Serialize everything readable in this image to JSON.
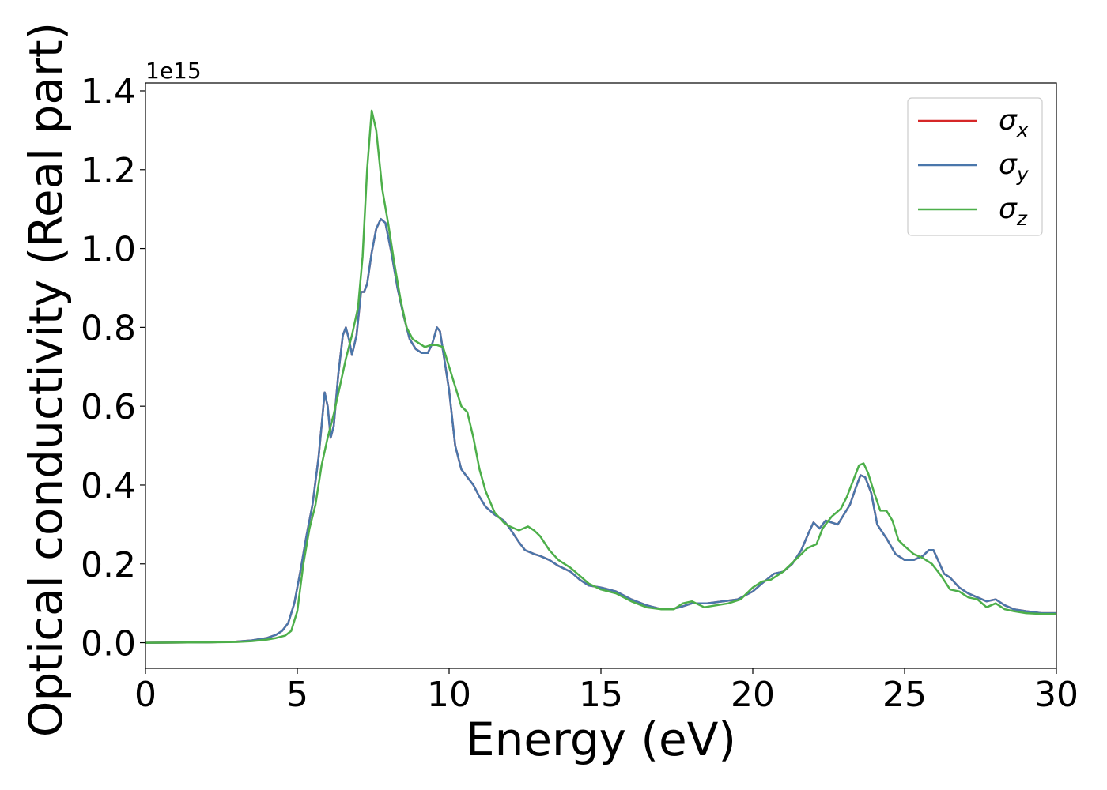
{
  "chart_data": {
    "type": "line",
    "xlabel": "Energy (eV)",
    "ylabel": "Optical conductivity (Real part)",
    "y_offset_label": "1e15",
    "xlim": [
      0,
      30
    ],
    "ylim": [
      -0.065,
      1.42
    ],
    "x_ticks": [
      0,
      5,
      10,
      15,
      20,
      25,
      30
    ],
    "x_tick_labels": [
      "0",
      "5",
      "10",
      "15",
      "20",
      "25",
      "30"
    ],
    "y_ticks": [
      0.0,
      0.2,
      0.4,
      0.6,
      0.8,
      1.0,
      1.2,
      1.4
    ],
    "y_tick_labels": [
      "0.0",
      "0.2",
      "0.4",
      "0.6",
      "0.8",
      "1.0",
      "1.2",
      "1.4"
    ],
    "grid": false,
    "legend_placement": "top-right",
    "series": [
      {
        "name": "σx",
        "legend_symbol": "σ",
        "legend_sub": "x",
        "color": "#d62728",
        "x": [
          0,
          2,
          3,
          3.5,
          4,
          4.3,
          4.5,
          4.7,
          4.9,
          5.1,
          5.3,
          5.5,
          5.7,
          5.8,
          5.9,
          6.0,
          6.1,
          6.2,
          6.35,
          6.5,
          6.6,
          6.7,
          6.8,
          6.95,
          7.1,
          7.2,
          7.3,
          7.45,
          7.6,
          7.75,
          7.9,
          8.1,
          8.3,
          8.5,
          8.7,
          8.9,
          9.1,
          9.3,
          9.45,
          9.6,
          9.7,
          9.8,
          9.9,
          10.0,
          10.2,
          10.4,
          10.6,
          10.8,
          11.0,
          11.2,
          11.5,
          11.8,
          12.0,
          12.3,
          12.5,
          12.8,
          13.0,
          13.3,
          13.6,
          14.0,
          14.3,
          14.6,
          15.0,
          15.5,
          16.0,
          16.5,
          17.0,
          17.3,
          17.6,
          18.0,
          18.5,
          19.0,
          19.5,
          20.0,
          20.3,
          20.7,
          21.0,
          21.3,
          21.6,
          21.85,
          22.0,
          22.2,
          22.4,
          22.6,
          22.8,
          23.0,
          23.2,
          23.4,
          23.55,
          23.7,
          23.9,
          24.1,
          24.4,
          24.7,
          25.0,
          25.3,
          25.6,
          25.8,
          25.95,
          26.1,
          26.3,
          26.5,
          26.8,
          27.1,
          27.4,
          27.7,
          28.0,
          28.3,
          28.6,
          29.0,
          29.5,
          30.0
        ],
        "values": [
          0,
          0.001,
          0.003,
          0.006,
          0.012,
          0.02,
          0.03,
          0.05,
          0.1,
          0.18,
          0.27,
          0.35,
          0.47,
          0.55,
          0.635,
          0.6,
          0.52,
          0.55,
          0.68,
          0.78,
          0.8,
          0.77,
          0.73,
          0.78,
          0.89,
          0.89,
          0.91,
          0.99,
          1.05,
          1.075,
          1.065,
          0.99,
          0.9,
          0.83,
          0.77,
          0.745,
          0.735,
          0.735,
          0.76,
          0.8,
          0.79,
          0.74,
          0.69,
          0.64,
          0.5,
          0.44,
          0.42,
          0.4,
          0.37,
          0.345,
          0.325,
          0.31,
          0.29,
          0.255,
          0.235,
          0.225,
          0.22,
          0.21,
          0.195,
          0.18,
          0.16,
          0.145,
          0.14,
          0.13,
          0.11,
          0.095,
          0.085,
          0.085,
          0.09,
          0.1,
          0.1,
          0.105,
          0.11,
          0.13,
          0.15,
          0.175,
          0.18,
          0.2,
          0.235,
          0.28,
          0.305,
          0.29,
          0.31,
          0.305,
          0.3,
          0.325,
          0.35,
          0.395,
          0.425,
          0.42,
          0.38,
          0.3,
          0.265,
          0.225,
          0.21,
          0.21,
          0.22,
          0.235,
          0.235,
          0.21,
          0.175,
          0.165,
          0.14,
          0.125,
          0.115,
          0.105,
          0.11,
          0.095,
          0.085,
          0.08,
          0.075,
          0.075
        ]
      },
      {
        "name": "σy",
        "legend_symbol": "σ",
        "legend_sub": "y",
        "color": "#4a77ab",
        "x": [
          0,
          2,
          3,
          3.5,
          4,
          4.3,
          4.5,
          4.7,
          4.9,
          5.1,
          5.3,
          5.5,
          5.7,
          5.8,
          5.9,
          6.0,
          6.1,
          6.2,
          6.35,
          6.5,
          6.6,
          6.7,
          6.8,
          6.95,
          7.1,
          7.2,
          7.3,
          7.45,
          7.6,
          7.75,
          7.9,
          8.1,
          8.3,
          8.5,
          8.7,
          8.9,
          9.1,
          9.3,
          9.45,
          9.6,
          9.7,
          9.8,
          9.9,
          10.0,
          10.2,
          10.4,
          10.6,
          10.8,
          11.0,
          11.2,
          11.5,
          11.8,
          12.0,
          12.3,
          12.5,
          12.8,
          13.0,
          13.3,
          13.6,
          14.0,
          14.3,
          14.6,
          15.0,
          15.5,
          16.0,
          16.5,
          17.0,
          17.3,
          17.6,
          18.0,
          18.5,
          19.0,
          19.5,
          20.0,
          20.3,
          20.7,
          21.0,
          21.3,
          21.6,
          21.85,
          22.0,
          22.2,
          22.4,
          22.6,
          22.8,
          23.0,
          23.2,
          23.4,
          23.55,
          23.7,
          23.9,
          24.1,
          24.4,
          24.7,
          25.0,
          25.3,
          25.6,
          25.8,
          25.95,
          26.1,
          26.3,
          26.5,
          26.8,
          27.1,
          27.4,
          27.7,
          28.0,
          28.3,
          28.6,
          29.0,
          29.5,
          30.0
        ],
        "values": [
          0,
          0.001,
          0.003,
          0.006,
          0.012,
          0.02,
          0.03,
          0.05,
          0.1,
          0.18,
          0.27,
          0.35,
          0.47,
          0.55,
          0.635,
          0.6,
          0.52,
          0.55,
          0.68,
          0.78,
          0.8,
          0.77,
          0.73,
          0.78,
          0.89,
          0.89,
          0.91,
          0.99,
          1.05,
          1.075,
          1.065,
          0.99,
          0.9,
          0.83,
          0.77,
          0.745,
          0.735,
          0.735,
          0.76,
          0.8,
          0.79,
          0.74,
          0.69,
          0.64,
          0.5,
          0.44,
          0.42,
          0.4,
          0.37,
          0.345,
          0.325,
          0.31,
          0.29,
          0.255,
          0.235,
          0.225,
          0.22,
          0.21,
          0.195,
          0.18,
          0.16,
          0.145,
          0.14,
          0.13,
          0.11,
          0.095,
          0.085,
          0.085,
          0.09,
          0.1,
          0.1,
          0.105,
          0.11,
          0.13,
          0.15,
          0.175,
          0.18,
          0.2,
          0.235,
          0.28,
          0.305,
          0.29,
          0.31,
          0.305,
          0.3,
          0.325,
          0.35,
          0.395,
          0.425,
          0.42,
          0.38,
          0.3,
          0.265,
          0.225,
          0.21,
          0.21,
          0.22,
          0.235,
          0.235,
          0.21,
          0.175,
          0.165,
          0.14,
          0.125,
          0.115,
          0.105,
          0.11,
          0.095,
          0.085,
          0.08,
          0.075,
          0.075
        ]
      },
      {
        "name": "σz",
        "legend_symbol": "σ",
        "legend_sub": "z",
        "color": "#4daf4a",
        "x": [
          0,
          2,
          3,
          3.5,
          4,
          4.3,
          4.6,
          4.8,
          5.0,
          5.2,
          5.4,
          5.6,
          5.8,
          6.0,
          6.2,
          6.4,
          6.6,
          6.8,
          7.0,
          7.15,
          7.3,
          7.45,
          7.6,
          7.8,
          8.0,
          8.2,
          8.4,
          8.6,
          8.8,
          9.0,
          9.2,
          9.4,
          9.6,
          9.8,
          10.0,
          10.2,
          10.4,
          10.6,
          10.8,
          11.0,
          11.2,
          11.5,
          11.8,
          12.0,
          12.3,
          12.6,
          12.8,
          13.0,
          13.3,
          13.6,
          14.0,
          14.3,
          14.6,
          15.0,
          15.5,
          16.0,
          16.5,
          17.0,
          17.4,
          17.7,
          18.0,
          18.4,
          18.8,
          19.2,
          19.6,
          20.0,
          20.3,
          20.6,
          21.0,
          21.4,
          21.8,
          22.1,
          22.3,
          22.6,
          22.9,
          23.1,
          23.3,
          23.5,
          23.65,
          23.8,
          24.0,
          24.2,
          24.4,
          24.6,
          24.8,
          25.0,
          25.3,
          25.6,
          25.9,
          26.2,
          26.5,
          26.8,
          27.1,
          27.4,
          27.7,
          28.0,
          28.3,
          28.6,
          29.0,
          29.5,
          30.0
        ],
        "values": [
          0,
          0.001,
          0.002,
          0.004,
          0.008,
          0.012,
          0.018,
          0.03,
          0.08,
          0.2,
          0.29,
          0.35,
          0.45,
          0.52,
          0.58,
          0.65,
          0.72,
          0.78,
          0.85,
          0.98,
          1.2,
          1.35,
          1.3,
          1.15,
          1.06,
          0.96,
          0.87,
          0.8,
          0.77,
          0.76,
          0.75,
          0.755,
          0.755,
          0.75,
          0.7,
          0.65,
          0.6,
          0.585,
          0.52,
          0.44,
          0.385,
          0.33,
          0.305,
          0.295,
          0.285,
          0.295,
          0.285,
          0.27,
          0.235,
          0.21,
          0.19,
          0.17,
          0.15,
          0.135,
          0.125,
          0.105,
          0.09,
          0.085,
          0.085,
          0.1,
          0.105,
          0.09,
          0.095,
          0.1,
          0.11,
          0.14,
          0.155,
          0.16,
          0.18,
          0.21,
          0.24,
          0.25,
          0.29,
          0.32,
          0.34,
          0.37,
          0.41,
          0.45,
          0.455,
          0.43,
          0.38,
          0.335,
          0.335,
          0.31,
          0.26,
          0.245,
          0.225,
          0.215,
          0.2,
          0.17,
          0.135,
          0.13,
          0.115,
          0.11,
          0.09,
          0.1,
          0.085,
          0.08,
          0.075,
          0.073,
          0.073
        ]
      }
    ]
  }
}
